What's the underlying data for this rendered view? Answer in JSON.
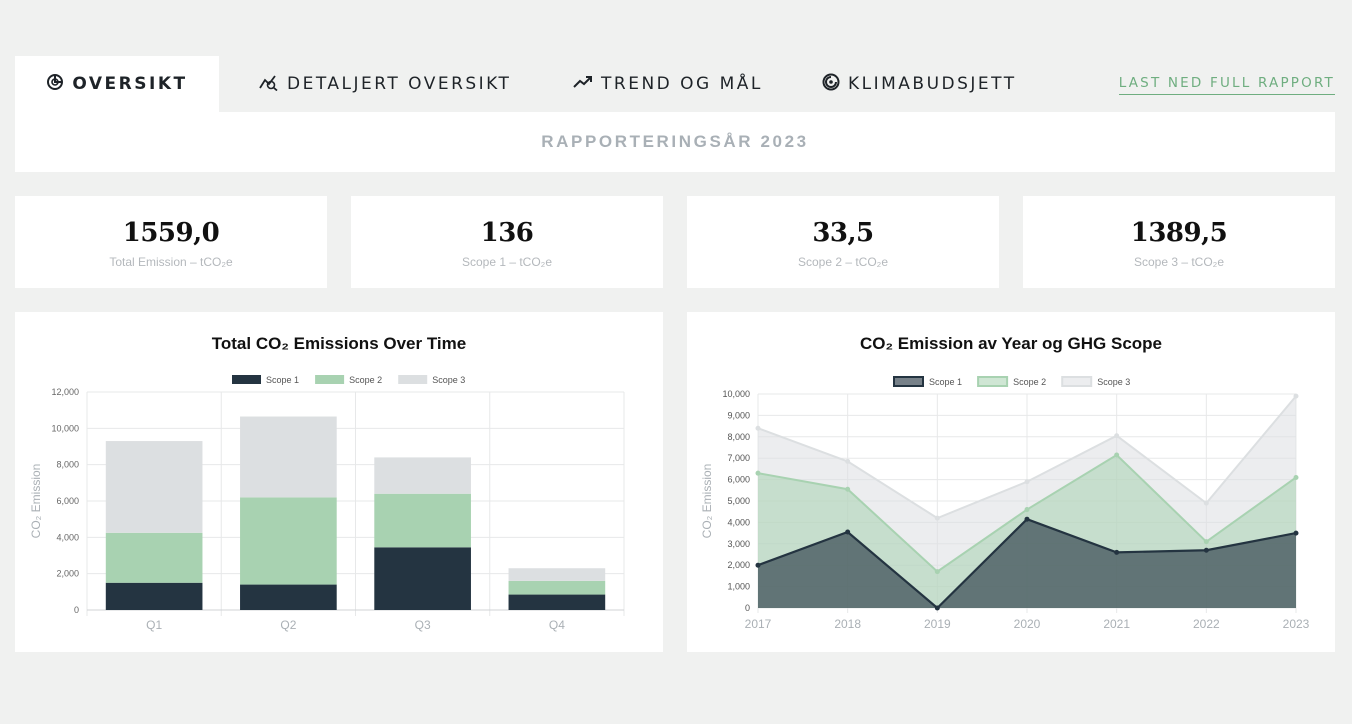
{
  "tabs": [
    {
      "label": "OVERSIKT",
      "icon": "donut-chart-icon",
      "active": true
    },
    {
      "label": "DETALJERT OVERSIKT",
      "icon": "analytics-icon",
      "active": false
    },
    {
      "label": "TREND OG MÅL",
      "icon": "trending-up-icon",
      "active": false
    },
    {
      "label": "KLIMABUDSJETT",
      "icon": "budget-target-icon",
      "active": false
    }
  ],
  "download_label": "LAST NED FULL RAPPORT",
  "reporting_year": "RAPPORTERINGSÅR 2023",
  "kpis": [
    {
      "value": "1559,0",
      "label": "Total Emission – tCO₂e"
    },
    {
      "value": "136",
      "label": "Scope 1 – tCO₂e"
    },
    {
      "value": "33,5",
      "label": "Scope 2 – tCO₂e"
    },
    {
      "value": "1389,5",
      "label": "Scope 3 – tCO₂e"
    }
  ],
  "colors": {
    "scope1": "#243441",
    "scope2": "#a8d2b1",
    "scope3": "#dcdfe1",
    "accent": "#6fae80"
  },
  "chart_data": [
    {
      "type": "bar",
      "title": "Total CO₂ Emissions Over Time",
      "ylabel": "CO₂ Emission",
      "categories": [
        "Q1",
        "Q2",
        "Q3",
        "Q4"
      ],
      "stacked": true,
      "ylim": [
        0,
        12000
      ],
      "yticks": [
        0,
        2000,
        4000,
        6000,
        8000,
        10000,
        12000
      ],
      "ytick_labels": [
        "0",
        "2,000",
        "4,000",
        "6,000",
        "8,000",
        "10,000",
        "12,000"
      ],
      "legend": "top",
      "series": [
        {
          "name": "Scope 1",
          "values": [
            1500,
            1400,
            3450,
            850
          ]
        },
        {
          "name": "Scope 2",
          "values": [
            2750,
            4800,
            2950,
            750
          ]
        },
        {
          "name": "Scope 3",
          "values": [
            5050,
            4450,
            2000,
            700
          ]
        }
      ]
    },
    {
      "type": "area",
      "title": "CO₂ Emission av Year og GHG Scope",
      "ylabel": "CO₂ Emission",
      "x": [
        "2017",
        "2018",
        "2019",
        "2020",
        "2021",
        "2022",
        "2023"
      ],
      "ylim": [
        0,
        10000
      ],
      "yticks": [
        0,
        1000,
        2000,
        3000,
        4000,
        5000,
        6000,
        7000,
        8000,
        9000,
        10000
      ],
      "ytick_labels": [
        "0",
        "1,000",
        "2,000",
        "3,000",
        "4,000",
        "5,000",
        "6,000",
        "7,000",
        "8,000",
        "9,000",
        "10,000"
      ],
      "legend": "top",
      "series": [
        {
          "name": "Scope 1",
          "values": [
            2000,
            3550,
            0,
            4150,
            2600,
            2700,
            3500
          ]
        },
        {
          "name": "Scope 2",
          "values": [
            6300,
            5550,
            1700,
            4600,
            7150,
            3100,
            6100
          ]
        },
        {
          "name": "Scope 3",
          "values": [
            8400,
            6850,
            4200,
            5900,
            8050,
            4900,
            9900
          ]
        }
      ]
    }
  ]
}
